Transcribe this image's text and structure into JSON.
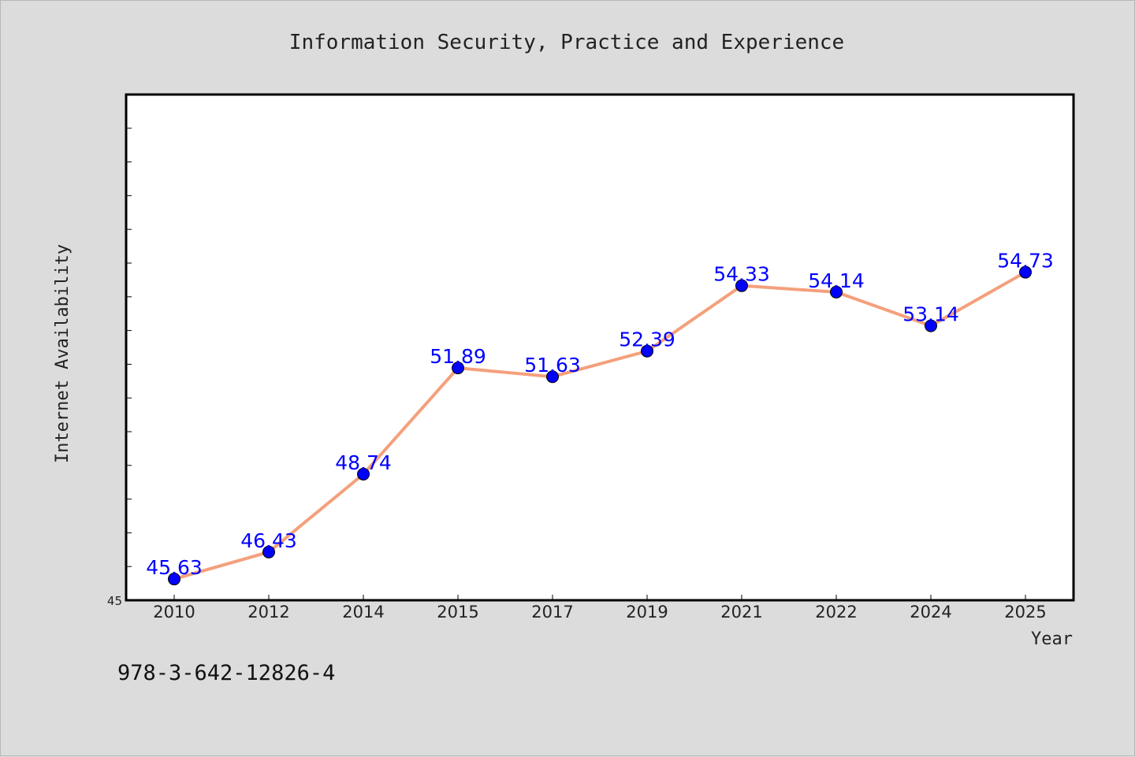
{
  "footer_code": "978-3-642-12826-4",
  "colors": {
    "background": "#dcdcdc",
    "plot_background": "#ffffff",
    "line": "#f4a07c",
    "marker": "#0000ff",
    "label": "#0000ff",
    "text": "#222222"
  },
  "chart_data": {
    "type": "line",
    "title": "Information Security, Practice and Experience",
    "xlabel": "Year",
    "ylabel": "Internet Availability",
    "categories": [
      "2010",
      "2012",
      "2014",
      "2015",
      "2017",
      "2019",
      "2021",
      "2022",
      "2024",
      "2025"
    ],
    "series": [
      {
        "values": [
          45.63,
          46.43,
          48.74,
          51.89,
          51.63,
          52.39,
          54.33,
          54.14,
          53.14,
          54.73
        ],
        "data_labels": [
          "45.63",
          "46.43",
          "48.74",
          "51.89",
          "51.63",
          "52.39",
          "54.33",
          "54.14",
          "53.14",
          "54.73"
        ]
      }
    ],
    "ylim": [
      45,
      60
    ],
    "y_tick_labels": [
      "45"
    ],
    "grid": false,
    "legend": "none"
  }
}
